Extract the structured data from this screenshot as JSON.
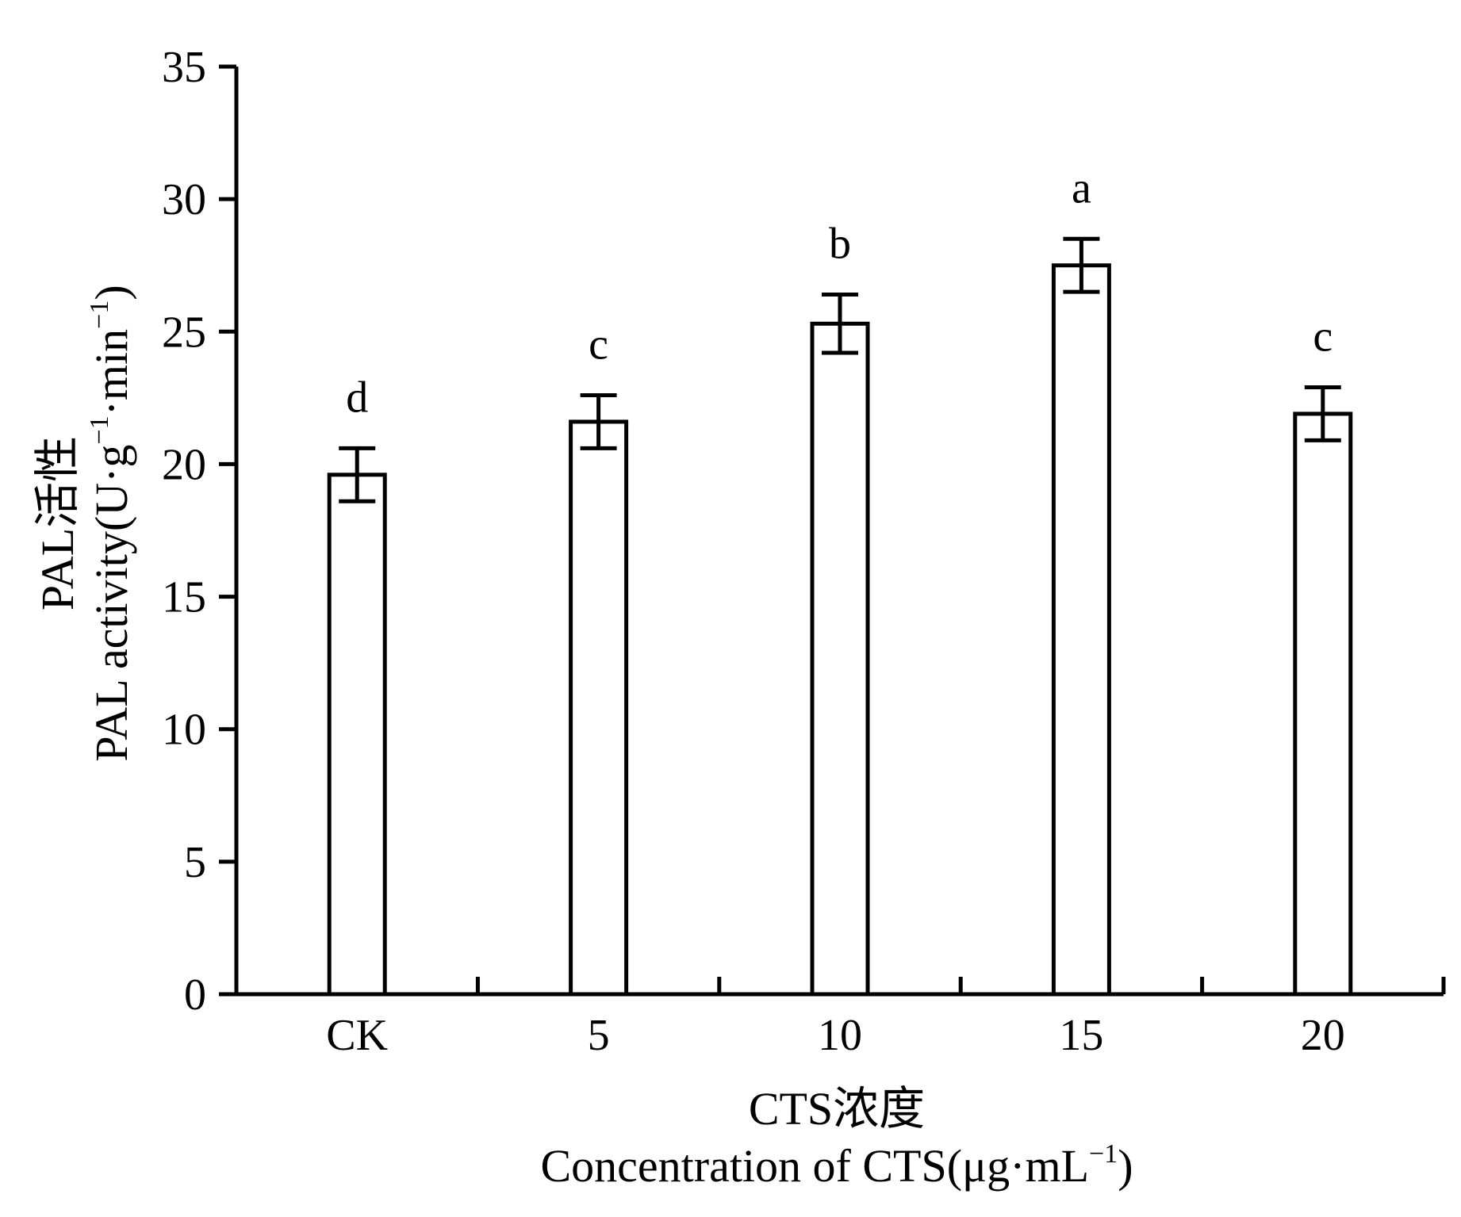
{
  "chart_data": {
    "type": "bar",
    "categories": [
      "CK",
      "5",
      "10",
      "15",
      "20"
    ],
    "values": [
      19.6,
      21.6,
      25.3,
      27.5,
      21.9
    ],
    "error": [
      1.0,
      1.0,
      1.1,
      1.0,
      1.0
    ],
    "significance": [
      "d",
      "c",
      "b",
      "a",
      "c"
    ],
    "yticks": [
      "0",
      "5",
      "10",
      "15",
      "20",
      "25",
      "30",
      "35"
    ],
    "ylim": [
      0,
      35
    ],
    "ylabel": {
      "line1": "PAL活性",
      "line2_main": "PAL activity(U·g",
      "sup1": "−1",
      "line2_mid": "·min",
      "sup2": "−1",
      "line2_end": ")"
    },
    "xlabel": {
      "line1": "CTS浓度",
      "line2_main": "Concentration of CTS(μg·mL",
      "sup": "−1",
      "line2_end": ")"
    },
    "grid": false,
    "bar_fill": "#ffffff",
    "bar_stroke": "#000000"
  }
}
